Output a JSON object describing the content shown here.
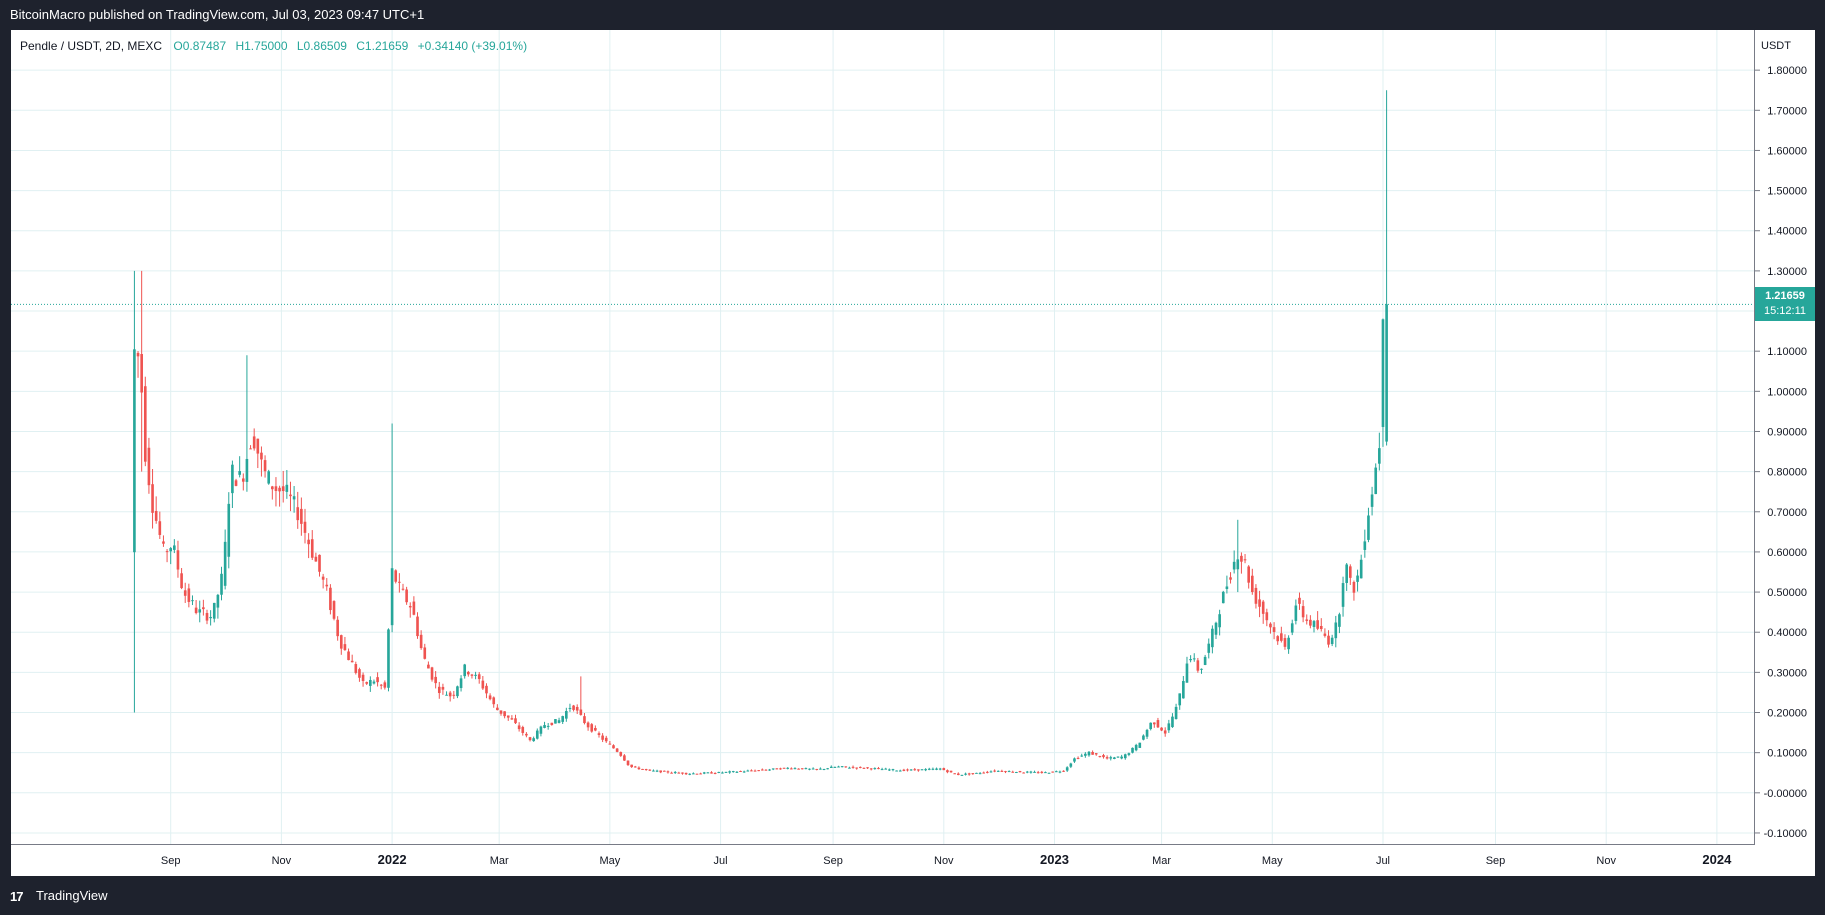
{
  "header": {
    "published_text": "BitcoinMacro published on TradingView.com, Jul 03, 2023 09:47 UTC+1"
  },
  "legend": {
    "symbol": "Pendle / USDT, 2D, MEXC",
    "open": "O0.87487",
    "high": "H1.75000",
    "low": "L0.86509",
    "close": "C1.21659",
    "change": "+0.34140 (+39.01%)"
  },
  "price_axis": {
    "unit": "USDT",
    "last_price": "1.21659",
    "countdown": "15:12:11"
  },
  "footer": {
    "brand": "TradingView",
    "logo_glyph": "17"
  },
  "colors": {
    "up": "#26a69a",
    "down": "#ef5350",
    "grid": "#e0f0f2",
    "axis_text": "#131722",
    "badge": "#26a69a"
  },
  "chart_data": {
    "type": "candlestick",
    "symbol": "Pendle / USDT",
    "interval": "2D",
    "exchange": "MEXC",
    "ylim": [
      -0.13,
      1.9
    ],
    "y_ticks": [
      "-0.10000",
      "-0.00000",
      "0.10000",
      "0.20000",
      "0.30000",
      "0.40000",
      "0.50000",
      "0.60000",
      "0.70000",
      "0.80000",
      "0.90000",
      "1.00000",
      "1.10000",
      "1.20000",
      "1.30000",
      "1.40000",
      "1.50000",
      "1.60000",
      "1.70000",
      "1.80000"
    ],
    "y_tick_values": [
      -0.1,
      0.0,
      0.1,
      0.2,
      0.3,
      0.4,
      0.5,
      0.6,
      0.7,
      0.8,
      0.9,
      1.0,
      1.1,
      1.2,
      1.3,
      1.4,
      1.5,
      1.6,
      1.7,
      1.8
    ],
    "x_range": [
      "2021-06-05",
      "2024-01-22"
    ],
    "x_ticks": [
      {
        "label": "Sep",
        "date": "2021-09-01"
      },
      {
        "label": "Nov",
        "date": "2021-11-01"
      },
      {
        "label": "2022",
        "date": "2022-01-01"
      },
      {
        "label": "Mar",
        "date": "2022-03-01"
      },
      {
        "label": "May",
        "date": "2022-05-01"
      },
      {
        "label": "Jul",
        "date": "2022-07-01"
      },
      {
        "label": "Sep",
        "date": "2022-09-01"
      },
      {
        "label": "Nov",
        "date": "2022-11-01"
      },
      {
        "label": "2023",
        "date": "2023-01-01"
      },
      {
        "label": "Mar",
        "date": "2023-03-01"
      },
      {
        "label": "May",
        "date": "2023-05-01"
      },
      {
        "label": "Jul",
        "date": "2023-07-01"
      },
      {
        "label": "Sep",
        "date": "2023-09-01"
      },
      {
        "label": "Nov",
        "date": "2023-11-01"
      },
      {
        "label": "2024",
        "date": "2024-01-01"
      }
    ],
    "price_anchors": [
      [
        "2021-08-12",
        0.6
      ],
      [
        "2021-08-14",
        1.1
      ],
      [
        "2021-08-17",
        1.08
      ],
      [
        "2021-08-20",
        0.85
      ],
      [
        "2021-08-24",
        0.72
      ],
      [
        "2021-08-30",
        0.6
      ],
      [
        "2021-09-04",
        0.62
      ],
      [
        "2021-09-10",
        0.5
      ],
      [
        "2021-09-18",
        0.45
      ],
      [
        "2021-09-26",
        0.44
      ],
      [
        "2021-10-02",
        0.55
      ],
      [
        "2021-10-06",
        0.8
      ],
      [
        "2021-10-12",
        0.78
      ],
      [
        "2021-10-18",
        0.9
      ],
      [
        "2021-10-24",
        0.8
      ],
      [
        "2021-10-30",
        0.76
      ],
      [
        "2021-11-05",
        0.75
      ],
      [
        "2021-11-12",
        0.7
      ],
      [
        "2021-11-20",
        0.6
      ],
      [
        "2021-11-28",
        0.5
      ],
      [
        "2021-12-05",
        0.38
      ],
      [
        "2021-12-12",
        0.32
      ],
      [
        "2021-12-18",
        0.27
      ],
      [
        "2021-12-24",
        0.28
      ],
      [
        "2021-12-30",
        0.26
      ],
      [
        "2022-01-03",
        0.55
      ],
      [
        "2022-01-08",
        0.5
      ],
      [
        "2022-01-14",
        0.46
      ],
      [
        "2022-01-20",
        0.34
      ],
      [
        "2022-01-28",
        0.26
      ],
      [
        "2022-02-05",
        0.24
      ],
      [
        "2022-02-12",
        0.31
      ],
      [
        "2022-02-20",
        0.28
      ],
      [
        "2022-03-01",
        0.21
      ],
      [
        "2022-03-10",
        0.18
      ],
      [
        "2022-03-20",
        0.13
      ],
      [
        "2022-03-28",
        0.17
      ],
      [
        "2022-04-05",
        0.18
      ],
      [
        "2022-04-12",
        0.22
      ],
      [
        "2022-04-20",
        0.17
      ],
      [
        "2022-04-30",
        0.13
      ],
      [
        "2022-05-08",
        0.1
      ],
      [
        "2022-05-14",
        0.065
      ],
      [
        "2022-05-25",
        0.055
      ],
      [
        "2022-06-15",
        0.048
      ],
      [
        "2022-07-01",
        0.05
      ],
      [
        "2022-07-20",
        0.055
      ],
      [
        "2022-08-10",
        0.062
      ],
      [
        "2022-08-25",
        0.058
      ],
      [
        "2022-09-05",
        0.065
      ],
      [
        "2022-09-20",
        0.062
      ],
      [
        "2022-10-10",
        0.056
      ],
      [
        "2022-10-25",
        0.058
      ],
      [
        "2022-11-01",
        0.06
      ],
      [
        "2022-11-10",
        0.045
      ],
      [
        "2022-11-20",
        0.048
      ],
      [
        "2022-12-01",
        0.055
      ],
      [
        "2022-12-15",
        0.052
      ],
      [
        "2022-12-28",
        0.05
      ],
      [
        "2023-01-08",
        0.055
      ],
      [
        "2023-01-14",
        0.085
      ],
      [
        "2023-01-22",
        0.1
      ],
      [
        "2023-02-01",
        0.085
      ],
      [
        "2023-02-10",
        0.09
      ],
      [
        "2023-02-18",
        0.12
      ],
      [
        "2023-02-26",
        0.18
      ],
      [
        "2023-03-05",
        0.15
      ],
      [
        "2023-03-12",
        0.22
      ],
      [
        "2023-03-18",
        0.35
      ],
      [
        "2023-03-24",
        0.3
      ],
      [
        "2023-03-30",
        0.38
      ],
      [
        "2023-04-04",
        0.46
      ],
      [
        "2023-04-10",
        0.55
      ],
      [
        "2023-04-14",
        0.6
      ],
      [
        "2023-04-18",
        0.57
      ],
      [
        "2023-04-22",
        0.5
      ],
      [
        "2023-04-28",
        0.45
      ],
      [
        "2023-05-04",
        0.4
      ],
      [
        "2023-05-10",
        0.36
      ],
      [
        "2023-05-16",
        0.47
      ],
      [
        "2023-05-22",
        0.43
      ],
      [
        "2023-05-28",
        0.41
      ],
      [
        "2023-06-03",
        0.38
      ],
      [
        "2023-06-08",
        0.42
      ],
      [
        "2023-06-12",
        0.58
      ],
      [
        "2023-06-16",
        0.5
      ],
      [
        "2023-06-20",
        0.55
      ],
      [
        "2023-06-24",
        0.68
      ],
      [
        "2023-06-28",
        0.78
      ],
      [
        "2023-07-01",
        0.87487
      ],
      [
        "2023-07-03",
        1.21659
      ]
    ],
    "wick_spikes": [
      [
        "2021-08-12",
        1.3,
        0.2
      ],
      [
        "2021-08-16",
        1.3,
        0.8
      ],
      [
        "2021-10-14",
        1.09,
        0.75
      ],
      [
        "2022-01-02",
        0.92,
        0.4
      ],
      [
        "2022-04-16",
        0.29,
        0.2
      ],
      [
        "2023-04-12",
        0.68,
        0.5
      ]
    ],
    "last_candle": {
      "date": "2023-07-03",
      "open": 0.87487,
      "high": 1.75,
      "low": 0.86509,
      "close": 1.21659,
      "change": 0.3414,
      "change_pct": 39.01
    },
    "last_price_line": 1.21659
  }
}
